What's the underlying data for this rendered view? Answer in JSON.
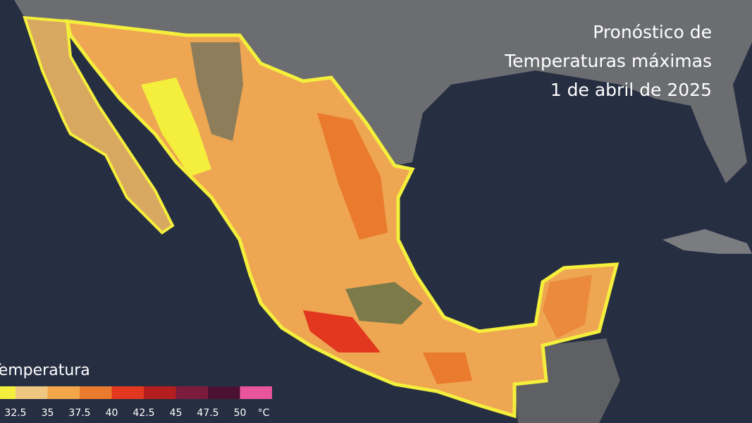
{
  "title": [
    "Pronóstico de",
    "Temperaturas máximas",
    "1 de abril de 2025"
  ],
  "legend": {
    "title": "Temperatura",
    "colors": [
      "#f4ee3c",
      "#f0c780",
      "#f2a649",
      "#ea7a2e",
      "#e2381f",
      "#b51e1e",
      "#7c1c3c",
      "#4a1230",
      "#e8559e"
    ],
    "ticks": [
      "32.5",
      "35",
      "37.5",
      "40",
      "42.5",
      "45",
      "47.5",
      "50"
    ],
    "unit": "°C"
  }
}
